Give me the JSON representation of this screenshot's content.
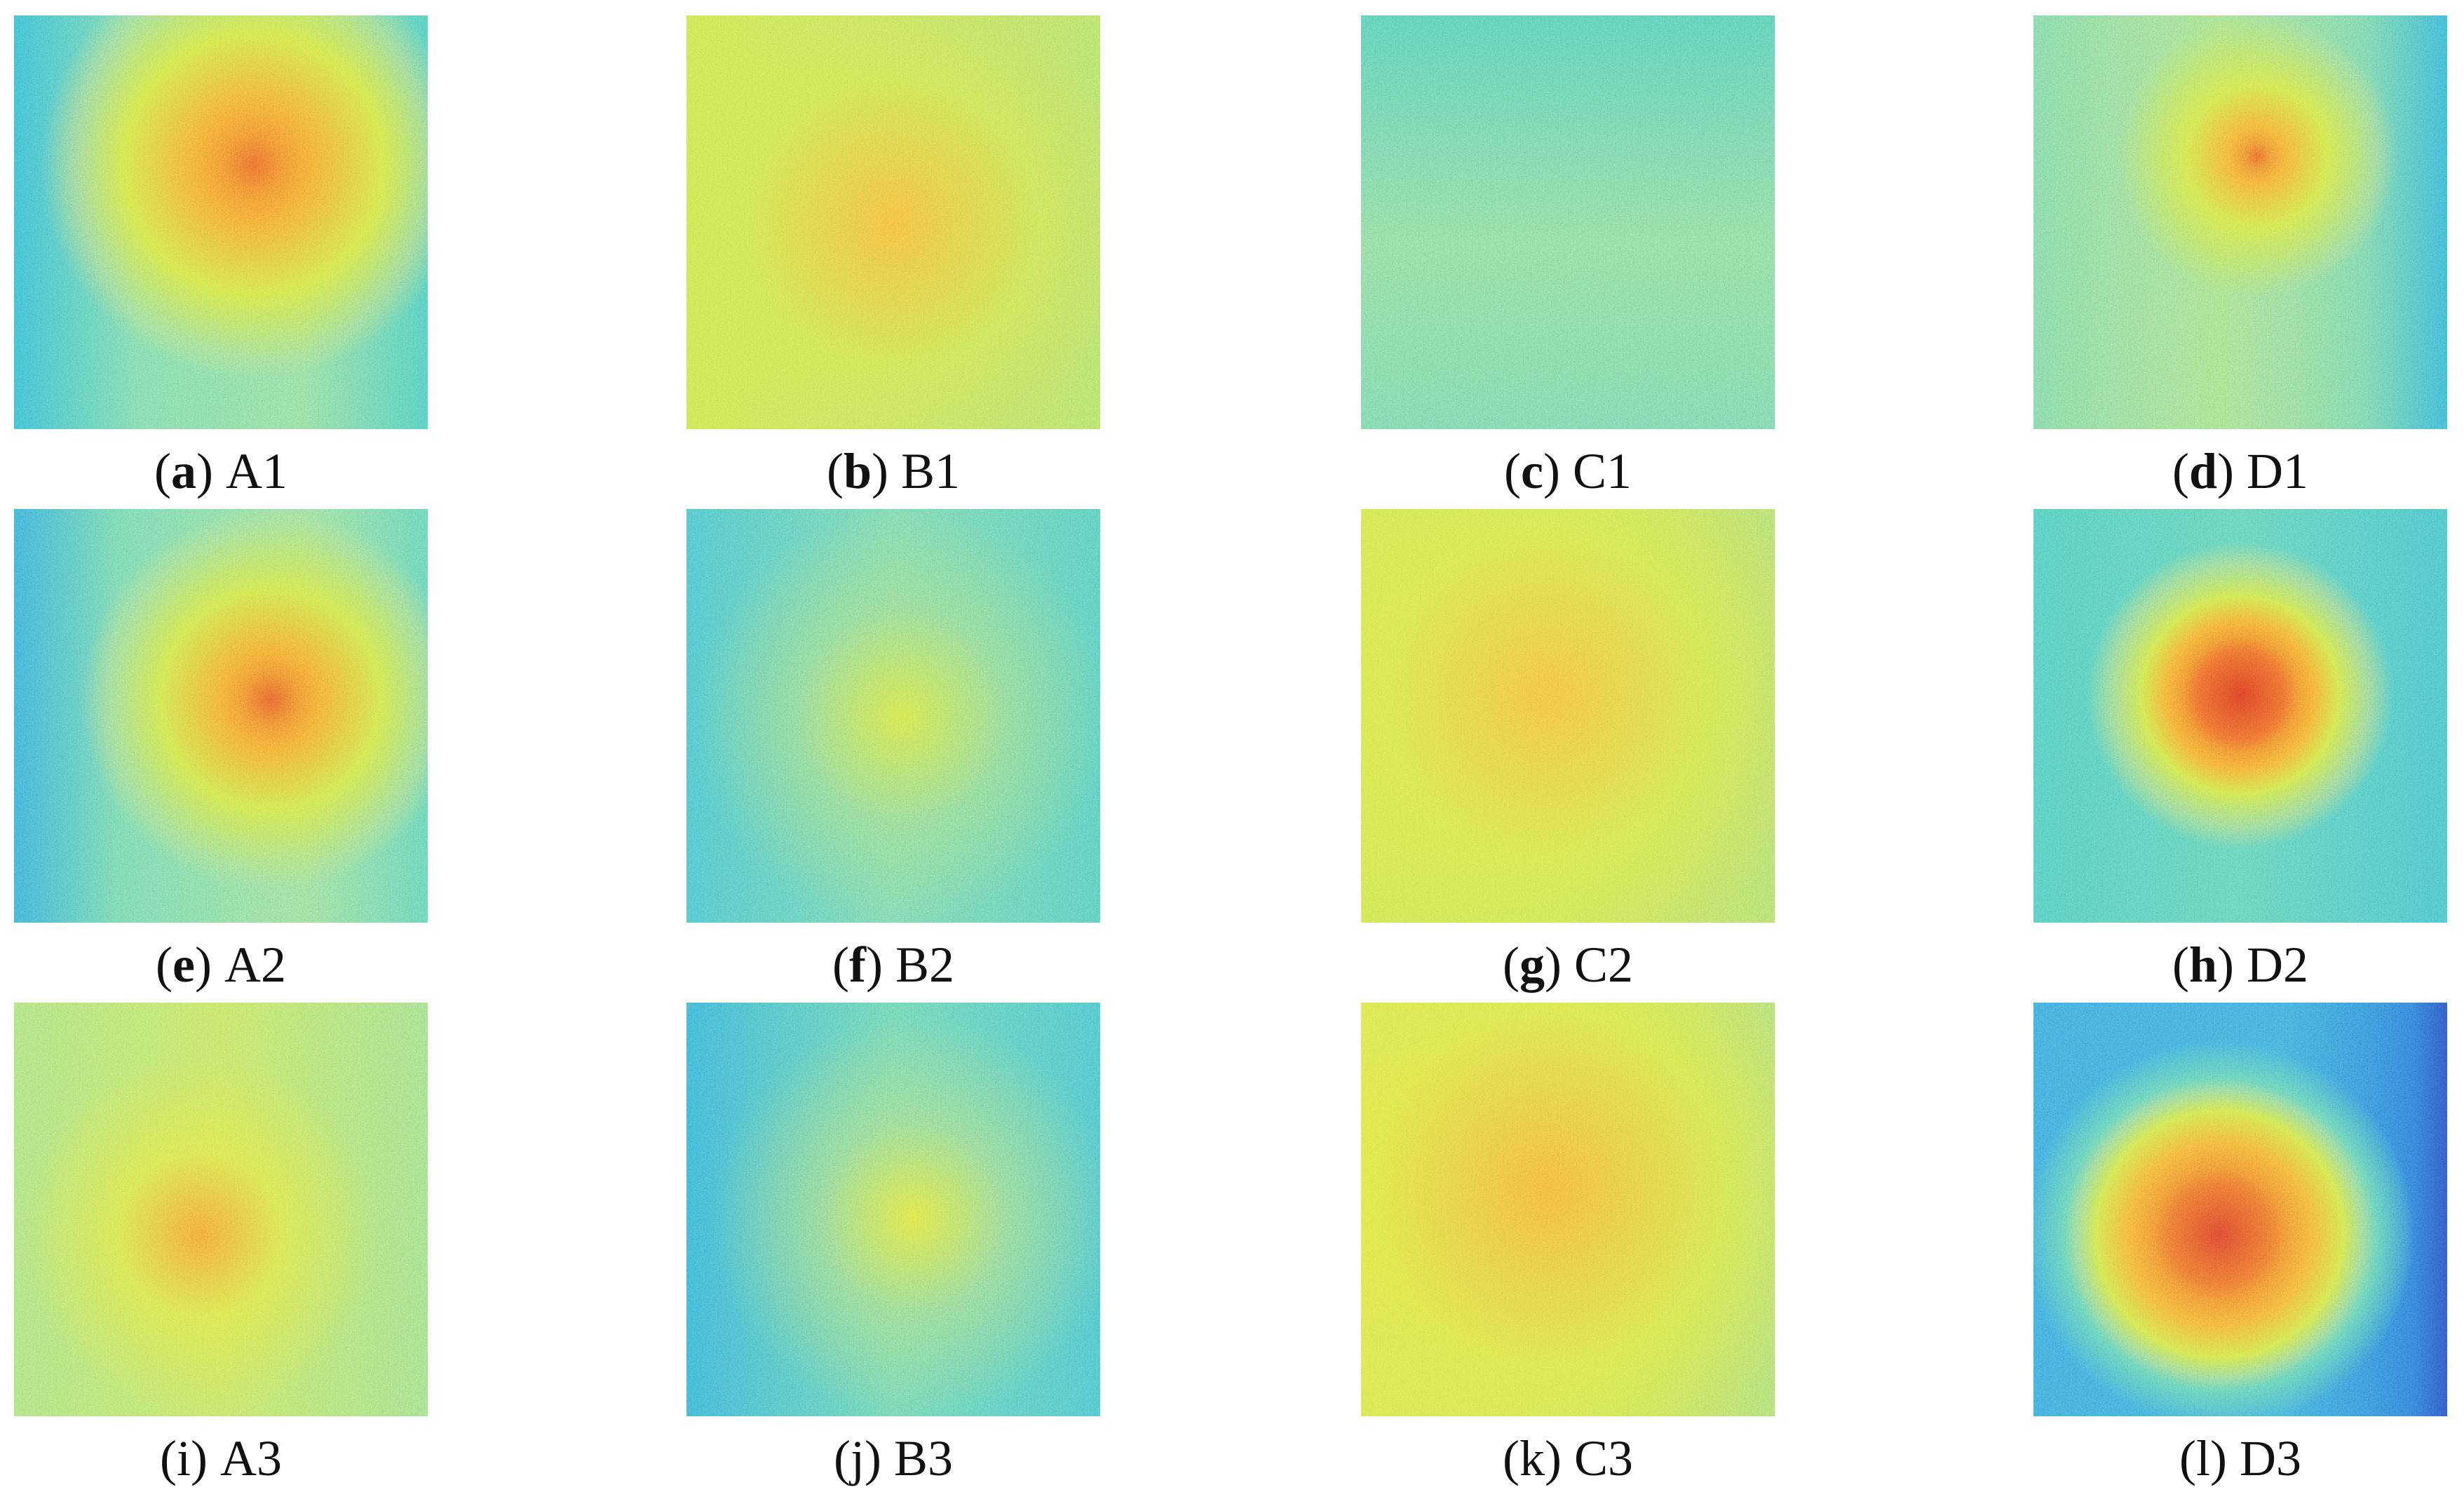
{
  "panels": [
    {
      "caption": [
        "(",
        "a",
        ")",
        "A1"
      ]
    },
    {
      "caption": [
        "(",
        "b",
        ")",
        "B1"
      ]
    },
    {
      "caption": [
        "(",
        "c",
        ")",
        "C1"
      ]
    },
    {
      "caption": [
        "(",
        "d",
        ")",
        "D1"
      ]
    },
    {
      "caption": [
        "(",
        "e",
        ")",
        "A2"
      ]
    },
    {
      "caption": [
        "(",
        "f",
        ")",
        "B2"
      ]
    },
    {
      "caption": [
        "(",
        "g",
        ")",
        "C2"
      ]
    },
    {
      "caption": [
        "(",
        "h",
        ")",
        "D2"
      ]
    },
    {
      "caption": [
        "(",
        "i",
        ")",
        "A3"
      ]
    },
    {
      "caption": [
        "(",
        "j",
        ")",
        "B3"
      ]
    },
    {
      "caption": [
        "(",
        "k",
        ")",
        "C3"
      ]
    },
    {
      "caption": [
        "(",
        "l",
        ")",
        "D3"
      ]
    }
  ]
}
